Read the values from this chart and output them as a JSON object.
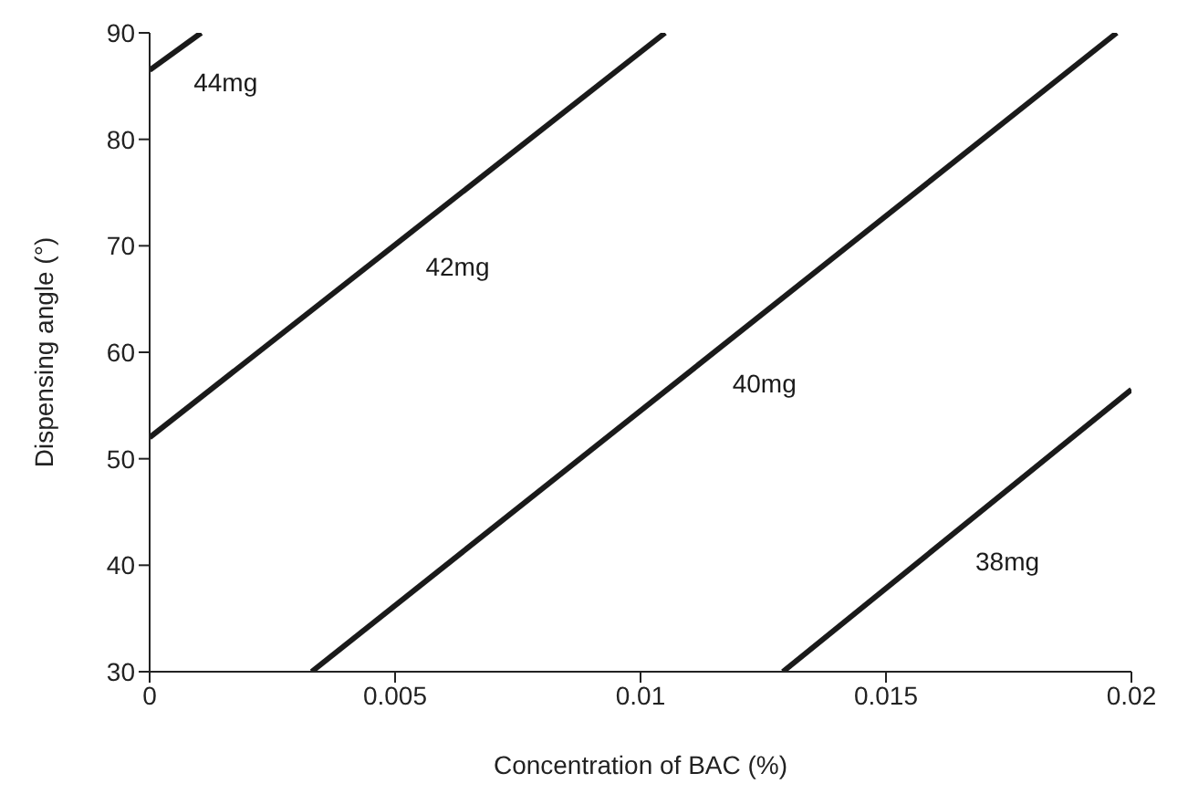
{
  "chart_data": {
    "type": "line",
    "xlabel": "Concentration of BAC (%)",
    "ylabel": "Dispensing angle (°)",
    "xlim": [
      0,
      0.02
    ],
    "xticks": [
      0,
      0.005,
      0.01,
      0.015,
      0.02
    ],
    "ylim": [
      30,
      90
    ],
    "yticks": [
      30,
      40,
      50,
      60,
      70,
      80,
      90
    ],
    "grid": false,
    "legend": false,
    "marker": "none",
    "line_style": "solid",
    "series": [
      {
        "name": "44mg",
        "color": "#1a1a1a",
        "x": [
          0,
          0.00105
        ],
        "values": [
          86.5,
          90
        ]
      },
      {
        "name": "42mg",
        "color": "#1a1a1a",
        "x": [
          0,
          0.0105
        ],
        "values": [
          52,
          90
        ]
      },
      {
        "name": "40mg",
        "color": "#1a1a1a",
        "x": [
          0.0033,
          0.0197
        ],
        "values": [
          30,
          90
        ]
      },
      {
        "name": "38mg",
        "color": "#1a1a1a",
        "x": [
          0.0129,
          0.02
        ],
        "values": [
          30,
          56.5
        ]
      }
    ]
  }
}
